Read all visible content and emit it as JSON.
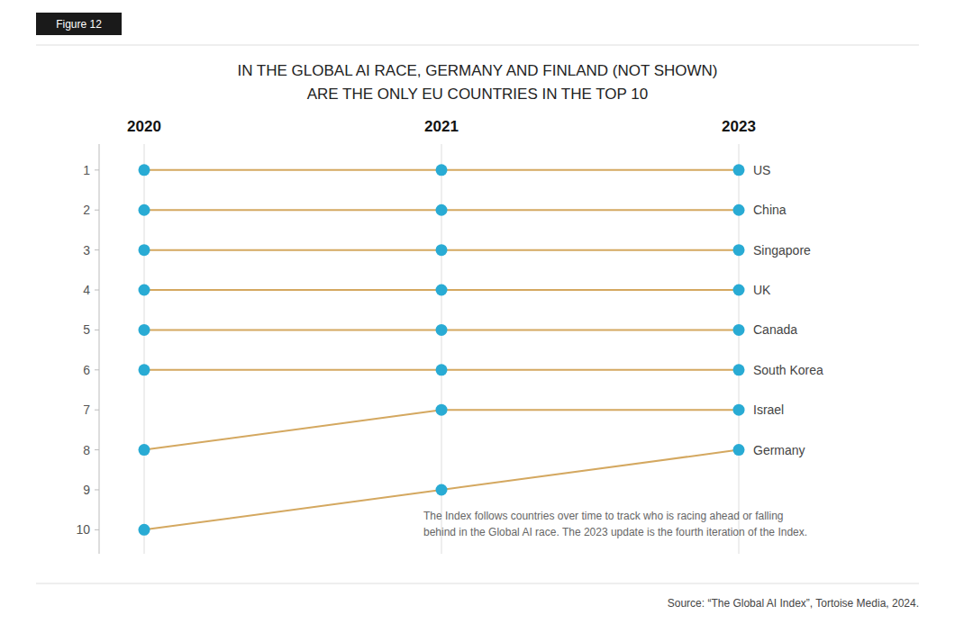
{
  "chart_data": {
    "type": "line",
    "title": "IN THE GLOBAL AI RACE, GERMANY AND FINLAND (NOT SHOWN)\nARE THE ONLY EU COUNTRIES IN THE TOP 10",
    "annotations": [
      "Figure 12",
      "The Index follows countries over time to track who is racing ahead or falling\nbehind in the Global AI race. The 2023 update is the fourth iteration of the Index.",
      "Source: “The Global AI Index”, Tortoise Media, 2024."
    ],
    "categories": [
      "2020",
      "2021",
      "2023"
    ],
    "color": "#D4A860",
    "marker": "circle",
    "grid": true,
    "ylim": [
      10.6,
      0.35
    ],
    "yticks": [
      1,
      2,
      3,
      4,
      5,
      6,
      7,
      8,
      9,
      10
    ],
    "series": [
      {
        "name": "US",
        "color": "#29ABD4",
        "values": [
          1,
          1,
          1
        ]
      },
      {
        "name": "China",
        "color": "#29ABD4",
        "values": [
          2,
          2,
          2
        ]
      },
      {
        "name": "Singapore",
        "color": "#29ABD4",
        "values": [
          3,
          3,
          3
        ]
      },
      {
        "name": "UK",
        "color": "#29ABD4",
        "values": [
          4,
          4,
          4
        ]
      },
      {
        "name": "Canada",
        "color": "#29ABD4",
        "values": [
          5,
          5,
          5
        ]
      },
      {
        "name": "South Korea",
        "color": "#29ABD4",
        "values": [
          6,
          6,
          6
        ]
      },
      {
        "name": "Israel",
        "color": "#29ABD4",
        "values": [
          8,
          7,
          7
        ]
      },
      {
        "name": "Germany",
        "color": "#29ABD4",
        "values": [
          10,
          9,
          8
        ]
      }
    ]
  }
}
